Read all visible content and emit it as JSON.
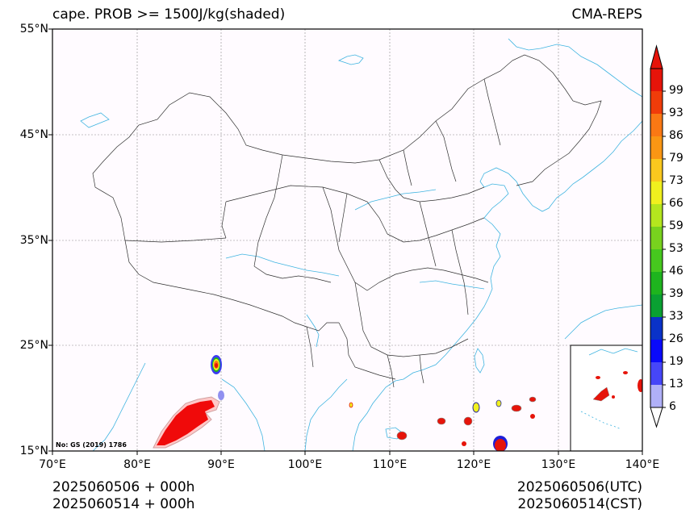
{
  "header": {
    "title": "cape. PROB >= 1500J/kg(shaded)",
    "model": "CMA-REPS"
  },
  "axes": {
    "lat_labels": [
      "55°N",
      "45°N",
      "35°N",
      "25°N",
      "15°N"
    ],
    "lon_labels": [
      "70°E",
      "80°E",
      "90°E",
      "100°E",
      "110°E",
      "120°E",
      "130°E",
      "140°E"
    ]
  },
  "map_note": "No: GS (2019) 1786",
  "footer": {
    "init_utc": "2025060506  +  000h",
    "init_cst": "2025060514  +  000h",
    "valid_utc": "2025060506(UTC)",
    "valid_cst": "2025060514(CST)"
  },
  "colorbar": {
    "levels": [
      "6",
      "13",
      "19",
      "26",
      "33",
      "39",
      "46",
      "53",
      "59",
      "66",
      "73",
      "79",
      "86",
      "93",
      "99"
    ],
    "colors": [
      "#b0b0f8",
      "#4646f8",
      "#0a0afa",
      "#0a32c8",
      "#0aa032",
      "#1eb41e",
      "#46c81e",
      "#78d21e",
      "#b4e61e",
      "#f0f01e",
      "#fac81e",
      "#fa9614",
      "#fa7814",
      "#f03c0a",
      "#e6140a"
    ],
    "over_color": "#e6140a",
    "under_color": "#ffffff"
  }
}
